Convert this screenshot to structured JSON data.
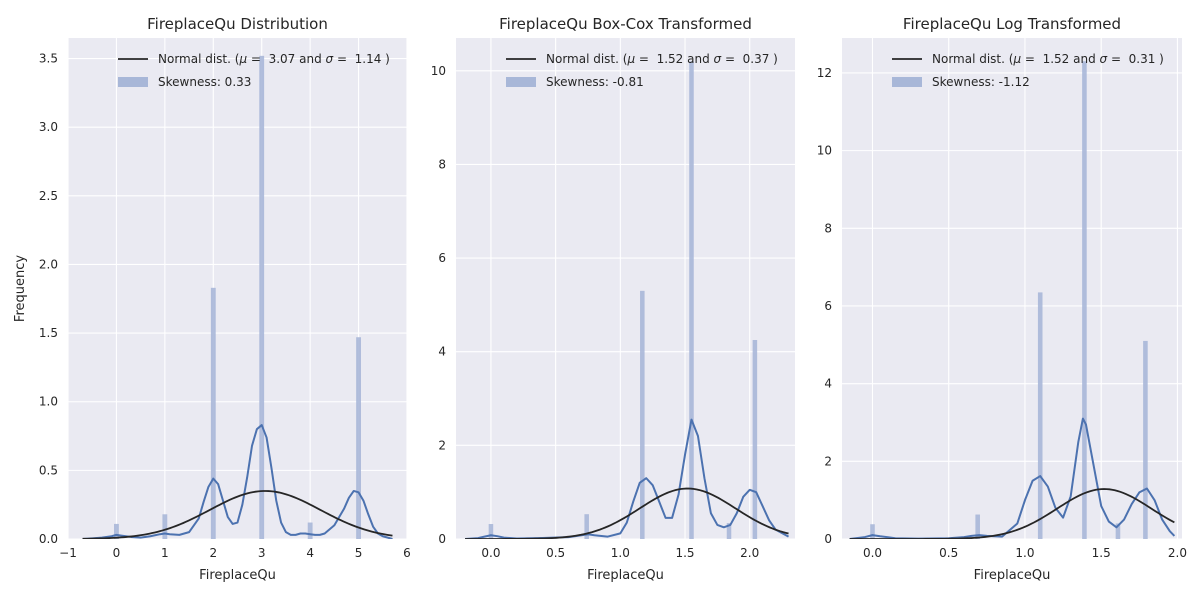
{
  "chart_data": [
    {
      "type": "histogram",
      "title": "FireplaceQu Distribution",
      "xlabel": "FireplaceQu",
      "ylabel": "Frequency",
      "xlim": [
        -1,
        6
      ],
      "ylim": [
        0,
        3.65
      ],
      "xticks": [
        -1,
        0,
        1,
        2,
        3,
        4,
        5,
        6
      ],
      "xtick_labels": [
        "−1",
        "0",
        "1",
        "2",
        "3",
        "4",
        "5",
        "6"
      ],
      "yticks": [
        0,
        0.5,
        1.0,
        1.5,
        2.0,
        2.5,
        3.0,
        3.5
      ],
      "ytick_labels": [
        "0.0",
        "0.5",
        "1.0",
        "1.5",
        "2.0",
        "2.5",
        "3.0",
        "3.5"
      ],
      "bar_width": 0.1,
      "bars": [
        {
          "x": 0,
          "height": 0.11
        },
        {
          "x": 1,
          "height": 0.18
        },
        {
          "x": 2,
          "height": 1.83
        },
        {
          "x": 3,
          "height": 3.52
        },
        {
          "x": 4,
          "height": 0.12
        },
        {
          "x": 5,
          "height": 1.47
        }
      ],
      "kde": {
        "x": [
          -0.7,
          -0.5,
          -0.3,
          -0.1,
          0.0,
          0.1,
          0.3,
          0.5,
          0.7,
          0.9,
          1.0,
          1.1,
          1.3,
          1.5,
          1.7,
          1.8,
          1.9,
          2.0,
          2.1,
          2.2,
          2.3,
          2.4,
          2.5,
          2.6,
          2.7,
          2.8,
          2.9,
          3.0,
          3.1,
          3.2,
          3.3,
          3.4,
          3.5,
          3.6,
          3.7,
          3.8,
          3.9,
          4.0,
          4.1,
          4.2,
          4.3,
          4.5,
          4.7,
          4.8,
          4.9,
          5.0,
          5.1,
          5.2,
          5.3,
          5.4,
          5.5,
          5.7
        ],
        "y": [
          0.0,
          0.005,
          0.01,
          0.02,
          0.03,
          0.025,
          0.015,
          0.01,
          0.02,
          0.035,
          0.04,
          0.035,
          0.03,
          0.05,
          0.15,
          0.27,
          0.38,
          0.44,
          0.4,
          0.28,
          0.16,
          0.11,
          0.12,
          0.25,
          0.45,
          0.68,
          0.8,
          0.83,
          0.74,
          0.52,
          0.28,
          0.12,
          0.05,
          0.03,
          0.03,
          0.04,
          0.04,
          0.035,
          0.03,
          0.03,
          0.04,
          0.1,
          0.22,
          0.3,
          0.35,
          0.34,
          0.28,
          0.18,
          0.09,
          0.04,
          0.02,
          0.0
        ]
      },
      "normal": {
        "mu": 3.07,
        "sigma": 1.14,
        "x_range": [
          -0.7,
          5.7
        ]
      },
      "legend": {
        "position": "upper right",
        "entries": [
          {
            "kind": "line",
            "label_prefix": "Normal dist. (",
            "mu_symbol": "μ",
            "mu_text": " =  3.07 and ",
            "sigma_symbol": "σ",
            "sigma_text": " =  1.14 )"
          },
          {
            "kind": "patch",
            "label": "Skewness: 0.33"
          }
        ]
      }
    },
    {
      "type": "histogram",
      "title": "FireplaceQu Box-Cox Transformed",
      "xlabel": "FireplaceQu",
      "ylabel": "",
      "xlim": [
        -0.27,
        2.35
      ],
      "ylim": [
        0,
        10.7
      ],
      "xticks": [
        0.0,
        0.5,
        1.0,
        1.5,
        2.0
      ],
      "xtick_labels": [
        "0.0",
        "0.5",
        "1.0",
        "1.5",
        "2.0"
      ],
      "yticks": [
        0,
        2,
        4,
        6,
        8,
        10
      ],
      "ytick_labels": [
        "0",
        "2",
        "4",
        "6",
        "8",
        "10"
      ],
      "bar_width": 0.035,
      "bars": [
        {
          "x": 0.0,
          "height": 0.32
        },
        {
          "x": 0.74,
          "height": 0.53
        },
        {
          "x": 1.17,
          "height": 5.3
        },
        {
          "x": 1.55,
          "height": 10.2
        },
        {
          "x": 1.84,
          "height": 0.34
        },
        {
          "x": 2.04,
          "height": 4.25
        }
      ],
      "kde": {
        "x": [
          -0.2,
          -0.1,
          -0.05,
          0.0,
          0.05,
          0.1,
          0.2,
          0.4,
          0.6,
          0.7,
          0.75,
          0.8,
          0.9,
          1.0,
          1.05,
          1.1,
          1.15,
          1.2,
          1.25,
          1.3,
          1.35,
          1.4,
          1.45,
          1.5,
          1.55,
          1.6,
          1.65,
          1.7,
          1.75,
          1.8,
          1.85,
          1.9,
          1.95,
          2.0,
          2.05,
          2.1,
          2.15,
          2.2,
          2.3
        ],
        "y": [
          0.0,
          0.02,
          0.05,
          0.08,
          0.06,
          0.03,
          0.01,
          0.02,
          0.04,
          0.08,
          0.1,
          0.08,
          0.05,
          0.12,
          0.35,
          0.8,
          1.2,
          1.3,
          1.15,
          0.8,
          0.45,
          0.45,
          0.95,
          1.8,
          2.55,
          2.2,
          1.3,
          0.55,
          0.3,
          0.25,
          0.3,
          0.55,
          0.9,
          1.05,
          1.0,
          0.7,
          0.4,
          0.2,
          0.05
        ]
      },
      "normal": {
        "mu": 1.52,
        "sigma": 0.37,
        "x_range": [
          -0.2,
          2.3
        ]
      },
      "legend": {
        "position": "upper right",
        "entries": [
          {
            "kind": "line",
            "label_prefix": "Normal dist. (",
            "mu_symbol": "μ",
            "mu_text": " =  1.52 and ",
            "sigma_symbol": "σ",
            "sigma_text": " =  0.37 )"
          },
          {
            "kind": "patch",
            "label": "Skewness: -0.81"
          }
        ]
      }
    },
    {
      "type": "histogram",
      "title": "FireplaceQu Log Transformed",
      "xlabel": "FireplaceQu",
      "ylabel": "",
      "xlim": [
        -0.2,
        2.03
      ],
      "ylim": [
        0,
        12.9
      ],
      "xticks": [
        0.0,
        0.5,
        1.0,
        1.5,
        2.0
      ],
      "xtick_labels": [
        "0.0",
        "0.5",
        "1.0",
        "1.5",
        "2.0"
      ],
      "yticks": [
        0,
        2,
        4,
        6,
        8,
        10,
        12
      ],
      "ytick_labels": [
        "0",
        "2",
        "4",
        "6",
        "8",
        "10",
        "12"
      ],
      "bar_width": 0.03,
      "bars": [
        {
          "x": 0.0,
          "height": 0.38
        },
        {
          "x": 0.69,
          "height": 0.63
        },
        {
          "x": 1.1,
          "height": 6.35
        },
        {
          "x": 1.39,
          "height": 12.3
        },
        {
          "x": 1.61,
          "height": 0.4
        },
        {
          "x": 1.79,
          "height": 5.1
        }
      ],
      "kde": {
        "x": [
          -0.15,
          -0.05,
          0.0,
          0.05,
          0.15,
          0.3,
          0.5,
          0.6,
          0.65,
          0.7,
          0.75,
          0.85,
          0.95,
          1.0,
          1.05,
          1.1,
          1.15,
          1.2,
          1.25,
          1.3,
          1.35,
          1.38,
          1.4,
          1.45,
          1.5,
          1.55,
          1.6,
          1.65,
          1.7,
          1.75,
          1.8,
          1.85,
          1.9,
          1.95,
          1.98
        ],
        "y": [
          0.0,
          0.05,
          0.1,
          0.07,
          0.02,
          0.01,
          0.02,
          0.05,
          0.08,
          0.1,
          0.08,
          0.06,
          0.4,
          1.0,
          1.5,
          1.62,
          1.35,
          0.8,
          0.55,
          1.1,
          2.5,
          3.1,
          2.95,
          1.9,
          0.85,
          0.45,
          0.3,
          0.5,
          0.9,
          1.2,
          1.3,
          1.0,
          0.5,
          0.2,
          0.08
        ]
      },
      "normal": {
        "mu": 1.52,
        "sigma": 0.31,
        "x_range": [
          -0.15,
          1.98
        ]
      },
      "legend": {
        "position": "upper right",
        "entries": [
          {
            "kind": "line",
            "label_prefix": "Normal dist. (",
            "mu_symbol": "μ",
            "mu_text": " =  1.52 and ",
            "sigma_symbol": "σ",
            "sigma_text": " =  0.31 )"
          },
          {
            "kind": "patch",
            "label": "Skewness: -1.12"
          }
        ]
      }
    }
  ],
  "colors": {
    "figure_background": "#ffffff",
    "axes_background": "#eaeaf2",
    "grid": "#ffffff",
    "bar_fill": "#a8b7d8",
    "kde_line": "#4c72b0",
    "normal_line": "#262626",
    "text": "#262626"
  }
}
